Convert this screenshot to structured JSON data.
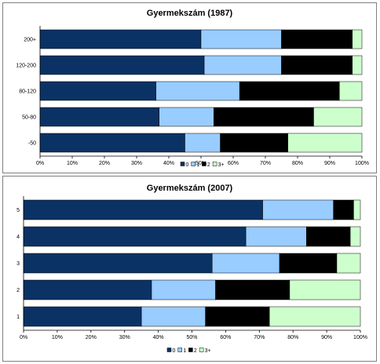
{
  "chart_data": [
    {
      "type": "bar",
      "orientation": "horizontal",
      "stacked": true,
      "title": "Gyermekszám (1987)",
      "categories": [
        "200+",
        "120-200",
        "80-120",
        "50-80",
        "-50"
      ],
      "series": [
        {
          "name": "0",
          "values": [
            50,
            51,
            36,
            37,
            45
          ],
          "color": "#0b3264"
        },
        {
          "name": "1",
          "values": [
            25,
            24,
            26,
            17,
            11
          ],
          "color": "#99ccff"
        },
        {
          "name": "2",
          "values": [
            22,
            22,
            31,
            31,
            21
          ],
          "color": "#000000"
        },
        {
          "name": "3+",
          "values": [
            3,
            3,
            7,
            15,
            23
          ],
          "color": "#ccffcc"
        }
      ],
      "xticks": [
        "0%",
        "10%",
        "20%",
        "30%",
        "40%",
        "50%",
        "60%",
        "70%",
        "80%",
        "90%",
        "100%"
      ],
      "xlim": [
        0,
        100
      ],
      "grid": false,
      "legend": "bottom"
    },
    {
      "type": "bar",
      "orientation": "horizontal",
      "stacked": true,
      "title": "Gyermekszám (2007)",
      "categories": [
        "5",
        "4",
        "3",
        "2",
        "1"
      ],
      "series": [
        {
          "name": "0",
          "values": [
            71,
            66,
            56,
            38,
            35
          ],
          "color": "#0b3264"
        },
        {
          "name": "1",
          "values": [
            21,
            18,
            20,
            19,
            19
          ],
          "color": "#99ccff"
        },
        {
          "name": "2",
          "values": [
            6,
            13,
            17,
            22,
            19
          ],
          "color": "#000000"
        },
        {
          "name": "3+",
          "values": [
            2,
            3,
            7,
            21,
            27
          ],
          "color": "#ccffcc"
        }
      ],
      "xticks": [
        "0%",
        "10%",
        "20%",
        "30%",
        "40%",
        "50%",
        "60%",
        "70%",
        "80%",
        "90%",
        "100%"
      ],
      "xlim": [
        0,
        100
      ],
      "grid": false,
      "legend": "bottom"
    }
  ]
}
